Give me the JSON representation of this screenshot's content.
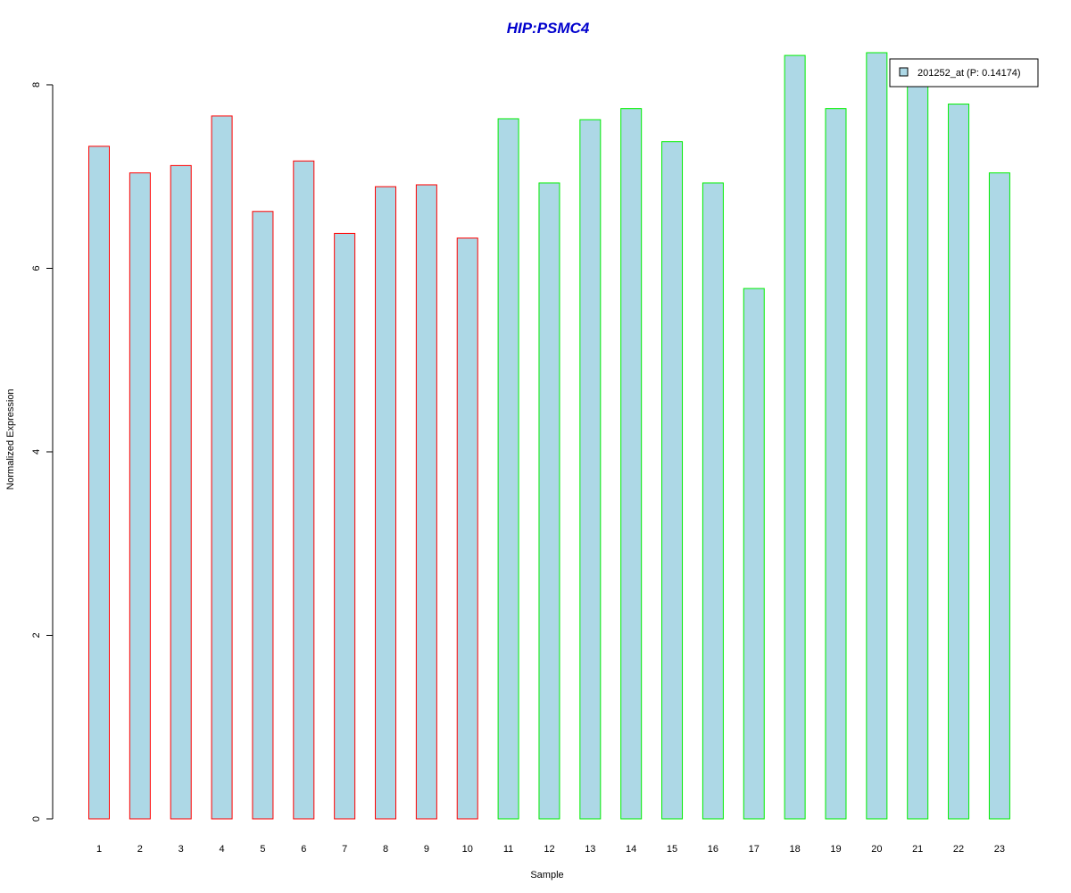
{
  "chart_data": {
    "type": "bar",
    "title": "HIP:PSMC4",
    "xlabel": "Sample",
    "ylabel": "Normalized Expression",
    "categories": [
      "1",
      "2",
      "3",
      "4",
      "5",
      "6",
      "7",
      "8",
      "9",
      "10",
      "11",
      "12",
      "13",
      "14",
      "15",
      "16",
      "17",
      "18",
      "19",
      "20",
      "21",
      "22",
      "23"
    ],
    "series": [
      {
        "name": "201252_at (P: 0.14174)",
        "values": [
          7.33,
          7.04,
          7.12,
          7.66,
          6.62,
          7.17,
          6.38,
          6.89,
          6.91,
          6.33,
          7.63,
          6.93,
          7.62,
          7.74,
          7.38,
          6.93,
          5.78,
          8.32,
          7.74,
          8.35,
          8.06,
          7.79,
          7.04
        ]
      }
    ],
    "groups": [
      {
        "from": 1,
        "to": 10,
        "border_color": "#ff0000"
      },
      {
        "from": 11,
        "to": 23,
        "border_color": "#00ee00"
      }
    ],
    "ylim": [
      0,
      8.35
    ],
    "y_ticks": [
      "0",
      "2",
      "4",
      "6",
      "8"
    ],
    "grid": false,
    "legend_position": "top-right",
    "colors": {
      "title": "#0000cd",
      "bar_fill": "#add8e6",
      "group1_border": "#ff0000",
      "group2_border": "#00ee00",
      "axis": "#000000"
    }
  }
}
